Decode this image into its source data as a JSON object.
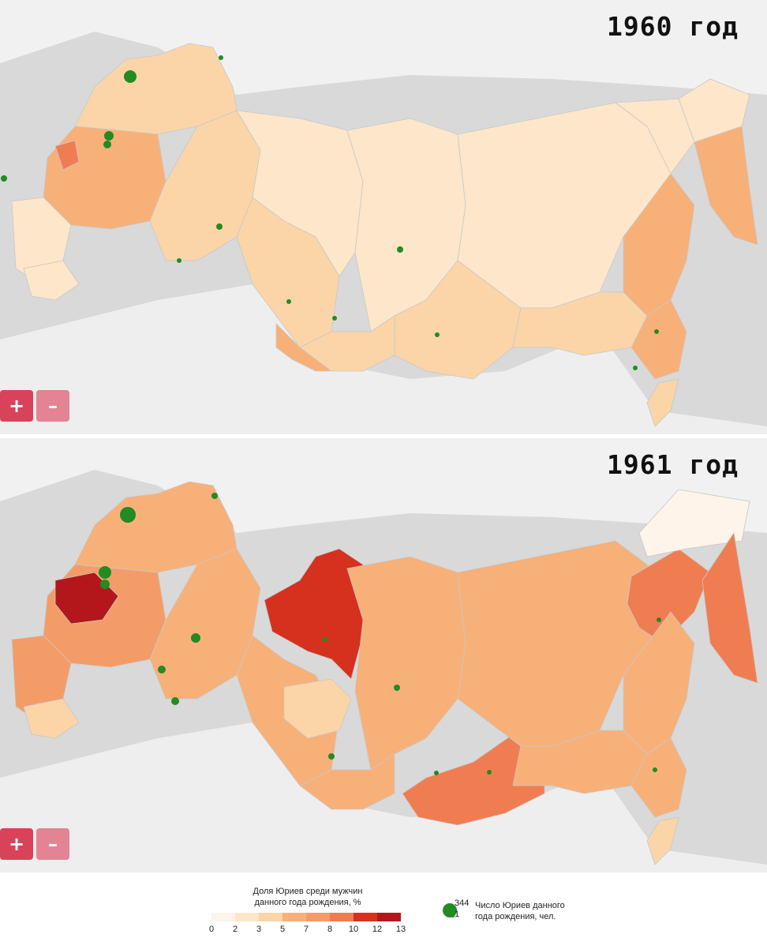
{
  "maps": [
    {
      "year_label": "1960 год",
      "regions": {
        "northwest": "#fbd5a8",
        "center": "#f8b079",
        "moscow": "#f07d52",
        "south": "#fde6c9",
        "caucasus": "#fde6c9",
        "volga": "#fbd5a8",
        "urals": "#fbd5a8",
        "tyumen": "#fde6c9",
        "krasnoyarsk": "#fde6c9",
        "west_siberia_south": "#fbd5a8",
        "altai": "#f8b079",
        "irkutsk": "#fbd5a8",
        "yakutia": "#fde6c9",
        "magadan": "#fde6c9",
        "chukotka": "#fde6c9",
        "kamchatka": "#f8b079",
        "khabarovsk": "#f8b079",
        "amur": "#fbd5a8",
        "primorye": "#f8b079",
        "sakhalin": "#fbd5a8"
      },
      "zoom": {
        "plus": "+",
        "minus": "–"
      }
    },
    {
      "year_label": "1961 год",
      "regions": {
        "northwest": "#f8b079",
        "center": "#f49c68",
        "moscow": "#b3171c",
        "south": "#f49c68",
        "caucasus": "#fbd5a8",
        "volga": "#f8b079",
        "urals": "#f8b079",
        "tyumen": "#d6311e",
        "krasnoyarsk": "#f8b079",
        "west_siberia_south": "#f8b079",
        "altai": "#fbd5a8",
        "irkutsk": "#f07d52",
        "yakutia": "#f8b079",
        "magadan": "#f07d52",
        "chukotka": "#fef4ea",
        "kamchatka": "#f07d52",
        "khabarovsk": "#f8b079",
        "amur": "#f8b079",
        "primorye": "#f8b079",
        "sakhalin": "#fbd5a8"
      },
      "zoom": {
        "plus": "+",
        "minus": "–"
      }
    }
  ],
  "legend": {
    "title_line1": "Доля Юриев среди мужчин",
    "title_line2": "данного года рождения, %",
    "colors": [
      "#fef4ea",
      "#fde6c9",
      "#fbd5a8",
      "#f8b079",
      "#f49c68",
      "#f07d52",
      "#d6311e",
      "#b3171c"
    ],
    "ticks": [
      "0",
      "2",
      "3",
      "5",
      "7",
      "8",
      "10",
      "12",
      "13"
    ],
    "circle_max": "344",
    "circle_min": "1",
    "circle_title_line1": "Число Юриев данного",
    "circle_title_line2": "года рождения, чел."
  }
}
